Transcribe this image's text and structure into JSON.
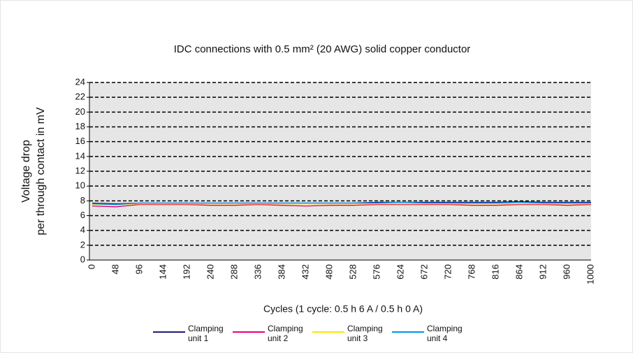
{
  "chart_data": {
    "type": "line",
    "title": "IDC connections with 0.5 mm² (20 AWG) solid copper conductor",
    "xlabel": "Cycles (1 cycle: 0.5 h 6 A / 0.5 h 0 A)",
    "ylabel": [
      "Voltage drop",
      "per through contact in mV"
    ],
    "categories": [
      0,
      48,
      96,
      144,
      192,
      240,
      288,
      336,
      384,
      432,
      480,
      528,
      576,
      624,
      672,
      720,
      768,
      816,
      864,
      912,
      960,
      1000
    ],
    "ylim": [
      0,
      24
    ],
    "yticks": [
      0,
      2,
      4,
      6,
      8,
      10,
      12,
      14,
      16,
      18,
      20,
      22,
      24
    ],
    "grid": true,
    "series": [
      {
        "name": "Clamping unit 1",
        "color": "#1f1a7a",
        "values": [
          7.7,
          7.6,
          7.7,
          7.7,
          7.7,
          7.7,
          7.7,
          7.7,
          7.7,
          7.7,
          7.7,
          7.7,
          7.8,
          7.8,
          7.8,
          7.8,
          7.8,
          7.8,
          7.9,
          7.8,
          7.8,
          7.8
        ]
      },
      {
        "name": "Clamping unit 2",
        "color": "#e6007e",
        "values": [
          7.3,
          7.2,
          7.5,
          7.5,
          7.5,
          7.4,
          7.4,
          7.5,
          7.4,
          7.3,
          7.4,
          7.4,
          7.5,
          7.5,
          7.5,
          7.5,
          7.4,
          7.4,
          7.5,
          7.5,
          7.4,
          7.5
        ]
      },
      {
        "name": "Clamping unit 3",
        "color": "#ffe600",
        "values": [
          7.5,
          7.5,
          7.6,
          7.6,
          7.6,
          7.6,
          7.6,
          7.6,
          7.6,
          7.6,
          7.6,
          7.6,
          7.6,
          7.6,
          7.6,
          7.6,
          7.6,
          7.6,
          7.6,
          7.6,
          7.6,
          7.6
        ]
      },
      {
        "name": "Clamping unit 4",
        "color": "#0095db",
        "values": [
          7.6,
          7.5,
          7.7,
          7.7,
          7.7,
          7.7,
          7.7,
          7.7,
          7.7,
          7.7,
          7.7,
          7.7,
          7.7,
          7.8,
          7.7,
          7.7,
          7.7,
          7.7,
          7.8,
          7.7,
          7.7,
          7.7
        ]
      }
    ]
  }
}
